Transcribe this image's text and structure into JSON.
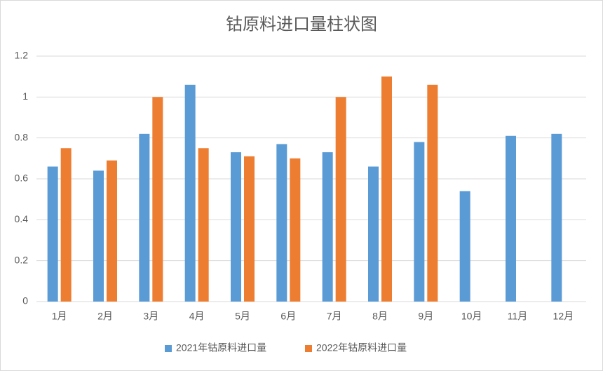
{
  "chart_data": {
    "type": "bar",
    "title": "钴原料进口量柱状图",
    "categories": [
      "1月",
      "2月",
      "3月",
      "4月",
      "5月",
      "6月",
      "7月",
      "8月",
      "9月",
      "10月",
      "11月",
      "12月"
    ],
    "series": [
      {
        "name": "2021年钴原料进口量",
        "color": "#5b9bd5",
        "values": [
          0.66,
          0.64,
          0.82,
          1.06,
          0.73,
          0.77,
          0.73,
          0.66,
          0.78,
          0.54,
          0.81,
          0.82
        ]
      },
      {
        "name": "2022年钴原料进口量",
        "color": "#ed7d31",
        "values": [
          0.75,
          0.69,
          1.0,
          0.75,
          0.71,
          0.7,
          1.0,
          1.1,
          1.06,
          null,
          null,
          null
        ]
      }
    ],
    "ylim": [
      0,
      1.2
    ],
    "yticks": [
      0,
      0.2,
      0.4,
      0.6,
      0.8,
      1,
      1.2
    ],
    "grid": true,
    "legend": "bottom"
  }
}
